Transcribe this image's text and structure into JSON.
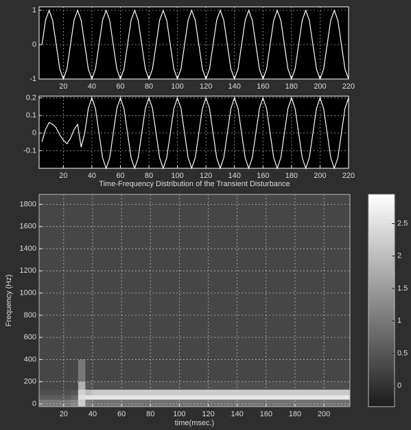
{
  "chart_data": [
    {
      "type": "line",
      "x": [
        5,
        7.5,
        10,
        12.5,
        15,
        17.5,
        20,
        22.5,
        25,
        27.5,
        30,
        32.5,
        35,
        37.5,
        40,
        42.5,
        45,
        47.5,
        50,
        52.5,
        55,
        57.5,
        60,
        62.5,
        65,
        67.5,
        70,
        72.5,
        75,
        77.5,
        80,
        82.5,
        85,
        87.5,
        90,
        92.5,
        95,
        97.5,
        100,
        102.5,
        105,
        107.5,
        110,
        112.5,
        115,
        117.5,
        120,
        122.5,
        125,
        127.5,
        130,
        132.5,
        135,
        137.5,
        140,
        142.5,
        145,
        147.5,
        150,
        152.5,
        155,
        157.5,
        160,
        162.5,
        165,
        167.5,
        170,
        172.5,
        175,
        177.5,
        180,
        182.5,
        185,
        187.5,
        190,
        192.5,
        195,
        197.5,
        200,
        202.5,
        205,
        207.5,
        210,
        212.5,
        215,
        217.5,
        220
      ],
      "values": [
        0,
        0.71,
        1,
        0.71,
        0,
        -0.71,
        -1,
        -0.71,
        0,
        0.71,
        1,
        0.71,
        0,
        -0.71,
        -1,
        -0.71,
        0,
        0.71,
        1,
        0.71,
        0,
        -0.71,
        -1,
        -0.71,
        0,
        0.71,
        1,
        0.71,
        0,
        -0.71,
        -1,
        -0.71,
        0,
        0.71,
        1,
        0.71,
        0,
        -0.71,
        -1,
        -0.71,
        0,
        0.71,
        1,
        0.71,
        0,
        -0.71,
        -1,
        -0.71,
        0,
        0.71,
        1,
        0.71,
        0,
        -0.71,
        -1,
        -0.71,
        0,
        0.71,
        1,
        0.71,
        0,
        -0.71,
        -1,
        -0.71,
        0,
        0.71,
        1,
        0.71,
        0,
        -0.71,
        -1,
        -0.71,
        0,
        0.71,
        1,
        0.71,
        0,
        -0.71,
        -1,
        -0.71,
        0,
        0.71,
        1,
        0.71,
        0,
        -0.71,
        -1
      ],
      "color": "#ffffff",
      "xlim": [
        3,
        220
      ],
      "xticks": [
        20,
        40,
        60,
        80,
        100,
        120,
        140,
        160,
        180,
        200,
        220
      ],
      "ylim": [
        -1,
        1.1
      ],
      "yticks": [
        -1,
        0,
        1
      ],
      "grid": true
    },
    {
      "type": "line",
      "x": [
        5,
        7.5,
        10,
        12.5,
        15,
        17.5,
        20,
        22.5,
        25,
        27.5,
        30,
        32.5,
        35,
        37.5,
        40,
        42.5,
        45,
        47.5,
        50,
        52.5,
        55,
        57.5,
        60,
        62.5,
        65,
        67.5,
        70,
        72.5,
        75,
        77.5,
        80,
        82.5,
        85,
        87.5,
        90,
        92.5,
        95,
        97.5,
        100,
        102.5,
        105,
        107.5,
        110,
        112.5,
        115,
        117.5,
        120,
        122.5,
        125,
        127.5,
        130,
        132.5,
        135,
        137.5,
        140,
        142.5,
        145,
        147.5,
        150,
        152.5,
        155,
        157.5,
        160,
        162.5,
        165,
        167.5,
        170,
        172.5,
        175,
        177.5,
        180,
        182.5,
        185,
        187.5,
        190,
        192.5,
        195,
        197.5,
        200,
        202.5,
        205,
        207.5,
        210,
        212.5,
        215,
        217.5,
        220
      ],
      "values": [
        -0.05,
        0.02,
        0.06,
        0.05,
        0.03,
        -0.01,
        -0.04,
        -0.06,
        -0.03,
        0.02,
        0.05,
        -0.08,
        0,
        0.14,
        0.2,
        0.14,
        0,
        -0.14,
        -0.2,
        -0.14,
        0,
        0.14,
        0.2,
        0.14,
        0,
        -0.14,
        -0.2,
        -0.14,
        0,
        0.14,
        0.2,
        0.14,
        0,
        -0.14,
        -0.2,
        -0.14,
        0,
        0.14,
        0.2,
        0.14,
        0,
        -0.14,
        -0.2,
        -0.14,
        0,
        0.14,
        0.2,
        0.14,
        0,
        -0.14,
        -0.2,
        -0.14,
        0,
        0.14,
        0.2,
        0.14,
        0,
        -0.14,
        -0.2,
        -0.14,
        0,
        0.14,
        0.2,
        0.14,
        0,
        -0.14,
        -0.2,
        -0.14,
        0,
        0.14,
        0.2,
        0.14,
        0,
        -0.14,
        -0.2,
        -0.14,
        0,
        0.14,
        0.2,
        0.14,
        0,
        -0.14,
        -0.2,
        -0.14,
        0,
        0.14,
        0.2
      ],
      "color": "#ffffff",
      "xlim": [
        3,
        220
      ],
      "xticks": [
        20,
        40,
        60,
        80,
        100,
        120,
        140,
        160,
        180,
        200,
        220
      ],
      "ylim": [
        -0.2,
        0.21
      ],
      "yticks": [
        -0.1,
        0,
        0.1,
        0.2
      ],
      "grid": true
    },
    {
      "type": "heatmap",
      "title": "Time-Frequency Distribution of the Transient Disturbance",
      "xlabel": "time(msec.)",
      "ylabel": "Frequency (Hz)",
      "x_edges": [
        3,
        25,
        30,
        35,
        40,
        218
      ],
      "y_edges": [
        -25,
        40,
        80,
        130,
        200,
        400,
        1890
      ],
      "z": [
        [
          1.0,
          1.2,
          2.2,
          1.0,
          0.9
        ],
        [
          0.6,
          0.8,
          2.5,
          2.6,
          2.6
        ],
        [
          0.4,
          0.5,
          2.3,
          2.0,
          2.2
        ],
        [
          0.3,
          0.3,
          1.8,
          0.5,
          0.4
        ],
        [
          0.3,
          0.3,
          1.0,
          0.3,
          0.3
        ],
        [
          0.3,
          0.3,
          0.3,
          0.3,
          0.3
        ]
      ],
      "colormap": [
        "#1c1c1c",
        "#ffffff"
      ],
      "clim": [
        -0.32,
        2.95
      ],
      "cticks": [
        0,
        0.5,
        1,
        1.5,
        2,
        2.5
      ],
      "xlim": [
        3,
        218
      ],
      "xticks": [
        20,
        40,
        60,
        80,
        100,
        120,
        140,
        160,
        180,
        200
      ],
      "ylim": [
        -25,
        1890
      ],
      "yticks": [
        0,
        200,
        400,
        600,
        800,
        1000,
        1200,
        1400,
        1600,
        1800
      ],
      "grid": true
    }
  ]
}
